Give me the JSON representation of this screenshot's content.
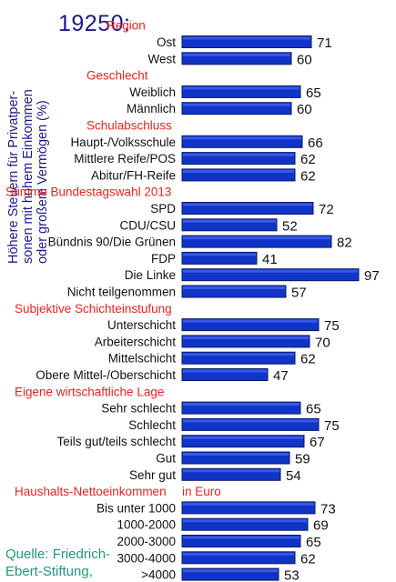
{
  "chart_data": {
    "type": "bar",
    "orientation": "horizontal",
    "header_number": "19250:",
    "vertical_title_lines": [
      "Höhere Steuern für Privatper-",
      "sonen mit hohem Einkommen",
      "oder großem Vermögen (%)"
    ],
    "source_lines": [
      "Quelle: Friedrich-",
      "Ebert-Stiftung,"
    ],
    "xlim": [
      0,
      100
    ],
    "bar_color": "#1034c8",
    "bar_border_color": "#0a1a66",
    "group_color": "#ee2222",
    "groups": [
      {
        "label": "Region",
        "items": [
          {
            "category": "Ost",
            "value": 71
          },
          {
            "category": "West",
            "value": 60
          }
        ]
      },
      {
        "label": "Geschlecht",
        "items": [
          {
            "category": "Weiblich",
            "value": 65
          },
          {
            "category": "Männlich",
            "value": 60
          }
        ]
      },
      {
        "label": "Schulabschluss",
        "items": [
          {
            "category": "Haupt-/Volksschule",
            "value": 66
          },
          {
            "category": "Mittlere Reife/POS",
            "value": 62
          },
          {
            "category": "Abitur/FH-Reife",
            "value": 62
          }
        ]
      },
      {
        "label": "Stimme  Bundestagswahl 2013",
        "items": [
          {
            "category": "SPD",
            "value": 72
          },
          {
            "category": "CDU/CSU",
            "value": 52
          },
          {
            "category": "Bündnis 90/Die Grünen",
            "value": 82
          },
          {
            "category": "FDP",
            "value": 41
          },
          {
            "category": "Die Linke",
            "value": 97
          },
          {
            "category": "Nicht teilgenommen",
            "value": 57
          }
        ]
      },
      {
        "label": "Subjektive Schichteinstufung",
        "items": [
          {
            "category": "Unterschicht",
            "value": 75
          },
          {
            "category": "Arbeiterschicht",
            "value": 70
          },
          {
            "category": "Mittelschicht",
            "value": 62
          },
          {
            "category": "Obere Mittel-/Oberschicht",
            "value": 47
          }
        ]
      },
      {
        "label": "Eigene wirtschaftliche Lage",
        "items": [
          {
            "category": "Sehr schlecht",
            "value": 65
          },
          {
            "category": "Schlecht",
            "value": 75
          },
          {
            "category": "Teils gut/teils schlecht",
            "value": 67
          },
          {
            "category": "Gut",
            "value": 59
          },
          {
            "category": "Sehr gut",
            "value": 54
          }
        ]
      },
      {
        "label": "Haushalts-Nettoeinkommen",
        "label_suffix": "in Euro",
        "items": [
          {
            "category": "Bis unter 1000",
            "value": 73
          },
          {
            "category": "1000-2000",
            "value": 69
          },
          {
            "category": "2000-3000",
            "value": 65
          },
          {
            "category": "3000-4000",
            "value": 62
          },
          {
            "category": ">4000",
            "value": 53
          }
        ]
      }
    ]
  }
}
